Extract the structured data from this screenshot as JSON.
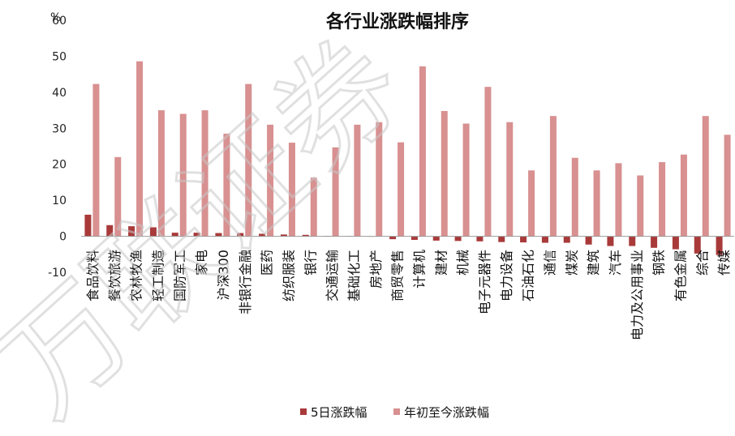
{
  "chart_data": {
    "type": "bar",
    "title": "各行业涨跌幅排序",
    "ylabel": "%",
    "ylim": [
      -10,
      60
    ],
    "yticks": [
      -10,
      0,
      10,
      20,
      30,
      40,
      50,
      60
    ],
    "grid": false,
    "legend": "bottom",
    "categories": [
      "食品饮料",
      "餐饮旅游",
      "农林牧渔",
      "轻工制造",
      "国防军工",
      "家电",
      "沪深300",
      "非银行金融",
      "医药",
      "纺织服装",
      "银行",
      "交通运输",
      "基础化工",
      "房地产",
      "商贸零售",
      "计算机",
      "建材",
      "机械",
      "电子元器件",
      "电力设备",
      "石油石化",
      "通信",
      "煤炭",
      "建筑",
      "汽车",
      "电力及公用事业",
      "钢铁",
      "有色金属",
      "综合",
      "传媒"
    ],
    "series": [
      {
        "name": "5日涨跌幅",
        "color": "#a93a3a",
        "values": [
          6.0,
          3.1,
          2.8,
          2.5,
          1.0,
          1.0,
          0.9,
          0.9,
          0.7,
          0.5,
          0.4,
          0.1,
          0.05,
          0.0,
          -0.8,
          -1.0,
          -1.2,
          -1.3,
          -1.4,
          -1.6,
          -1.7,
          -1.8,
          -1.8,
          -2.3,
          -2.7,
          -2.7,
          -3.2,
          -3.6,
          -4.8,
          -5.2
        ]
      },
      {
        "name": "年初至今涨跌幅",
        "color": "#d89090",
        "values": [
          42.3,
          22.0,
          48.6,
          35.0,
          34.0,
          35.0,
          28.5,
          42.3,
          31.0,
          26.0,
          16.3,
          24.7,
          31.0,
          31.7,
          26.1,
          47.2,
          34.8,
          31.3,
          41.5,
          31.7,
          18.3,
          33.4,
          21.8,
          18.3,
          20.3,
          16.9,
          20.6,
          22.7,
          33.4,
          28.2
        ]
      }
    ]
  },
  "watermark": "万联证券"
}
